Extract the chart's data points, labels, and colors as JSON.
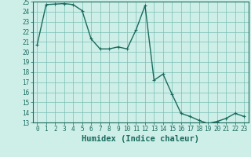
{
  "x": [
    0,
    1,
    2,
    3,
    4,
    5,
    6,
    7,
    8,
    9,
    10,
    11,
    12,
    13,
    14,
    15,
    16,
    17,
    18,
    19,
    20,
    21,
    22,
    23
  ],
  "y": [
    20.7,
    24.7,
    24.75,
    24.8,
    24.7,
    24.1,
    21.3,
    20.3,
    20.3,
    20.5,
    20.3,
    22.2,
    24.6,
    17.2,
    17.8,
    15.8,
    13.9,
    13.6,
    13.2,
    12.9,
    13.1,
    13.4,
    13.9,
    13.6
  ],
  "line_color": "#1a6b5e",
  "marker": "+",
  "marker_size": 3,
  "marker_color": "#1a6b5e",
  "bg_color": "#ceeee8",
  "grid_color": "#7bbfb5",
  "xlabel": "Humidex (Indice chaleur)",
  "xlim_min": -0.5,
  "xlim_max": 23.5,
  "ylim_min": 13,
  "ylim_max": 25,
  "yticks": [
    13,
    14,
    15,
    16,
    17,
    18,
    19,
    20,
    21,
    22,
    23,
    24,
    25
  ],
  "xticks": [
    0,
    1,
    2,
    3,
    4,
    5,
    6,
    7,
    8,
    9,
    10,
    11,
    12,
    13,
    14,
    15,
    16,
    17,
    18,
    19,
    20,
    21,
    22,
    23
  ],
  "tick_fontsize": 5.5,
  "xlabel_fontsize": 7.5,
  "line_width": 1.0
}
